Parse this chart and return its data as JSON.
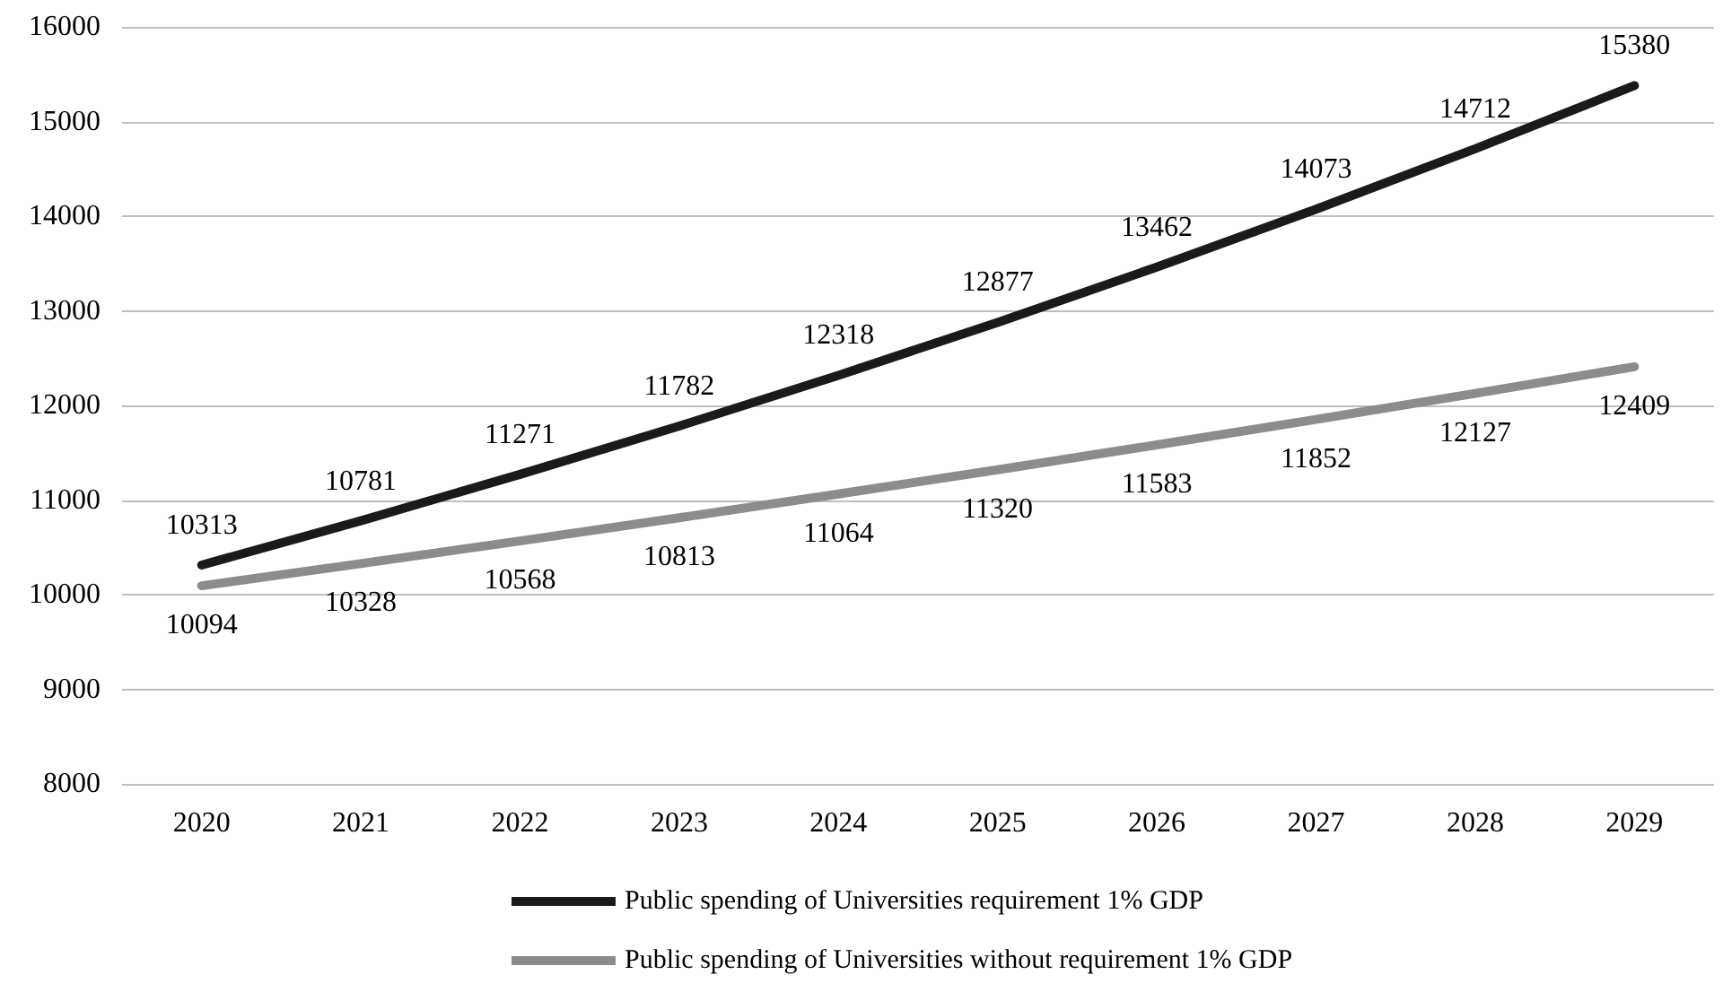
{
  "chart_data": {
    "type": "line",
    "categories": [
      "2020",
      "2021",
      "2022",
      "2023",
      "2024",
      "2025",
      "2026",
      "2027",
      "2028",
      "2029"
    ],
    "series": [
      {
        "name": "Public spending of Universities requirement 1% GDP",
        "color": "#1a1a1a",
        "values": [
          10313,
          10781,
          11271,
          11782,
          12318,
          12877,
          13462,
          14073,
          14712,
          15380
        ]
      },
      {
        "name": "Public spending of Universities without requirement 1% GDP",
        "color": "#8c8c8c",
        "values": [
          10094,
          10328,
          10568,
          10813,
          11064,
          11320,
          11583,
          11852,
          12127,
          12409
        ]
      }
    ],
    "ylim": [
      8000,
      16000
    ],
    "yticks": [
      8000,
      9000,
      10000,
      11000,
      12000,
      13000,
      14000,
      15000,
      16000
    ],
    "grid": "y",
    "legend": "bottom",
    "data_labels": true,
    "marker": "none",
    "line_style": "solid"
  }
}
